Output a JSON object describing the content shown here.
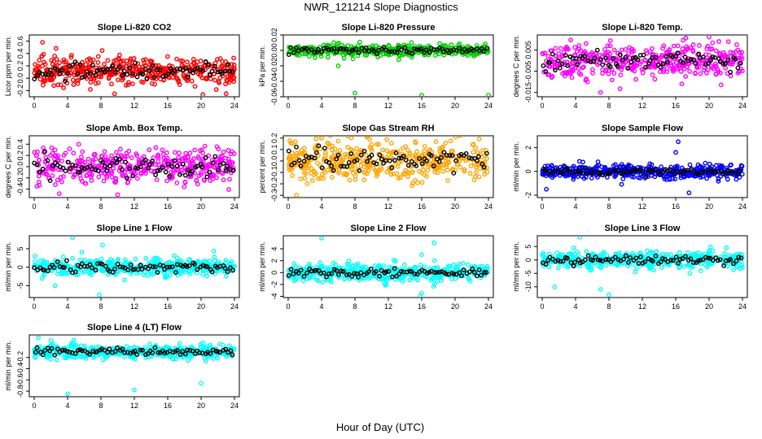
{
  "figure": {
    "title": "NWR_121214  Slope Diagnostics",
    "xlabel": "Hour of Day (UTC)"
  },
  "chart_data": [
    {
      "type": "scatter",
      "title": "Slope Li-820 CO2",
      "ylabel": "Licor ppm per min.",
      "xlim": [
        0,
        24
      ],
      "ylim": [
        -0.3,
        0.7
      ],
      "xticks": [
        0,
        4,
        8,
        12,
        16,
        20,
        24
      ],
      "yticks": [
        "-0.2",
        "0.0",
        "0.2",
        "0.4",
        "0.6"
      ],
      "ytick_values": [
        -0.2,
        0,
        0.2,
        0.4,
        0.6
      ],
      "color": "#ff0000",
      "center": 0.12,
      "spread": 0.11,
      "outliers": [
        [
          23,
          -0.25
        ],
        [
          1,
          0.58
        ]
      ],
      "series": [
        {
          "color": "#ff0000",
          "role": "all slopes"
        },
        {
          "color": "#000000",
          "role": "subset slopes"
        }
      ]
    },
    {
      "type": "scatter",
      "title": "Slope Li-820 Pressure",
      "ylabel": "kPa per min.",
      "xlim": [
        0,
        24
      ],
      "ylim": [
        -0.06,
        0.02
      ],
      "xticks": [
        0,
        4,
        8,
        12,
        16,
        20,
        24
      ],
      "yticks": [
        "-0.06",
        "-0.04",
        "-0.02",
        "0.00",
        "0.02"
      ],
      "ytick_values": [
        -0.06,
        -0.04,
        -0.02,
        0,
        0.02
      ],
      "color": "#00d000",
      "center": 0.0,
      "spread": 0.004,
      "outliers": [
        [
          8,
          -0.055
        ],
        [
          16,
          -0.058
        ],
        [
          24,
          -0.058
        ],
        [
          6,
          -0.02
        ]
      ],
      "series": [
        {
          "color": "#00d000",
          "role": "all slopes"
        },
        {
          "color": "#000000",
          "role": "subset slopes"
        }
      ]
    },
    {
      "type": "scatter",
      "title": "Slope Li-820 Temp.",
      "ylabel": "degrees C per min.",
      "xlim": [
        0,
        24
      ],
      "ylim": [
        -0.017,
        0.012
      ],
      "xticks": [
        0,
        4,
        8,
        12,
        16,
        20,
        24
      ],
      "yticks": [
        "-0.015",
        "-0.005",
        "0.005"
      ],
      "ytick_values": [
        -0.015,
        -0.005,
        0.005
      ],
      "color": "#ff00ff",
      "center": 0.0,
      "spread": 0.004,
      "outliers": [
        [
          20,
          0.011
        ],
        [
          7,
          -0.015
        ]
      ],
      "series": [
        {
          "color": "#ff00ff",
          "role": "all slopes"
        },
        {
          "color": "#000000",
          "role": "subset slopes"
        }
      ]
    },
    {
      "type": "scatter",
      "title": "Slope Amb. Box Temp.",
      "ylabel": "degrees C per min.",
      "xlim": [
        0,
        24
      ],
      "ylim": [
        -0.55,
        0.55
      ],
      "xticks": [
        0,
        4,
        8,
        12,
        16,
        20,
        24
      ],
      "yticks": [
        "-0.4",
        "-0.2",
        "0.0",
        "0.2",
        "0.4"
      ],
      "ytick_values": [
        -0.4,
        -0.2,
        0,
        0.2,
        0.4
      ],
      "color": "#ff00ff",
      "center": 0.0,
      "spread": 0.15,
      "outliers": [
        [
          10,
          -0.5
        ],
        [
          3,
          -0.48
        ]
      ],
      "series": [
        {
          "color": "#ff00ff",
          "role": "all slopes"
        },
        {
          "color": "#000000",
          "role": "subset slopes"
        }
      ]
    },
    {
      "type": "scatter",
      "title": "Slope Gas Stream RH",
      "ylabel": "percent per min.",
      "xlim": [
        0,
        24
      ],
      "ylim": [
        -0.32,
        0.22
      ],
      "xticks": [
        0,
        4,
        8,
        12,
        16,
        20,
        24
      ],
      "yticks": [
        "-0.3",
        "-0.2",
        "-0.1",
        "0.0",
        "0.1",
        "0.2"
      ],
      "ytick_values": [
        -0.3,
        -0.2,
        -0.1,
        0,
        0.1,
        0.2
      ],
      "color": "#ffa500",
      "center": 0.0,
      "spread": 0.09,
      "outliers": [
        [
          1,
          -0.3
        ],
        [
          4,
          0.2
        ]
      ],
      "series": [
        {
          "color": "#ffa500",
          "role": "all slopes"
        },
        {
          "color": "#000000",
          "role": "subset slopes"
        }
      ]
    },
    {
      "type": "scatter",
      "title": "Slope Sample Flow",
      "ylabel": "ml/min per min.",
      "xlim": [
        0,
        24
      ],
      "ylim": [
        -2.2,
        3.0
      ],
      "xticks": [
        0,
        4,
        8,
        12,
        16,
        20,
        24
      ],
      "yticks": [
        "-2",
        "0",
        "2"
      ],
      "ytick_values": [
        -2,
        0,
        2
      ],
      "color": "#0000ff",
      "center": 0.0,
      "spread": 0.3,
      "outliers": [
        [
          16.3,
          2.5
        ],
        [
          17.6,
          -1.8
        ],
        [
          0.5,
          -1.5
        ],
        [
          16,
          1.6
        ]
      ],
      "series": [
        {
          "color": "#0000ff",
          "role": "all slopes"
        },
        {
          "color": "#000000",
          "role": "subset slopes"
        }
      ]
    },
    {
      "type": "scatter",
      "title": "Slope Line 1 Flow",
      "ylabel": "ml/min per min.",
      "xlim": [
        0,
        24
      ],
      "ylim": [
        -8.2,
        8.5
      ],
      "xticks": [
        0,
        4,
        8,
        12,
        16,
        20,
        24
      ],
      "yticks": [
        "-5",
        "0",
        "5"
      ],
      "ytick_values": [
        -5,
        0,
        5
      ],
      "color": "#00ffff",
      "center": 0.0,
      "spread": 1.1,
      "outliers": [
        [
          4.6,
          8
        ],
        [
          8.2,
          6
        ],
        [
          7.8,
          -7.5
        ],
        [
          2.5,
          -5
        ]
      ],
      "series": [
        {
          "color": "#00ffff",
          "role": "all slopes"
        },
        {
          "color": "#000000",
          "role": "subset slopes"
        }
      ]
    },
    {
      "type": "scatter",
      "title": "Slope Line 2 Flow",
      "ylabel": "ml/min per min.",
      "xlim": [
        0,
        24
      ],
      "ylim": [
        -4.2,
        6.2
      ],
      "xticks": [
        0,
        4,
        8,
        12,
        16,
        20,
        24
      ],
      "yticks": [
        "-4",
        "-2",
        "0",
        "2",
        "4"
      ],
      "ytick_values": [
        -4,
        -2,
        0,
        2,
        4
      ],
      "color": "#00ffff",
      "center": 0.0,
      "spread": 0.7,
      "outliers": [
        [
          4,
          5.8
        ],
        [
          16,
          3
        ],
        [
          16,
          -3.5
        ],
        [
          17.5,
          5
        ],
        [
          15.8,
          -4
        ]
      ],
      "series": [
        {
          "color": "#00ffff",
          "role": "all slopes"
        },
        {
          "color": "#000000",
          "role": "subset slopes"
        }
      ]
    },
    {
      "type": "scatter",
      "title": "Slope Line 3 Flow",
      "ylabel": "ml/min per min.",
      "xlim": [
        0,
        24
      ],
      "ylim": [
        -14,
        9
      ],
      "xticks": [
        0,
        4,
        8,
        12,
        16,
        20,
        24
      ],
      "yticks": [
        "-10",
        "-5",
        "0",
        "5"
      ],
      "ytick_values": [
        -10,
        -5,
        0,
        5
      ],
      "color": "#00ffff",
      "center": 0.0,
      "spread": 1.6,
      "outliers": [
        [
          4.5,
          8.5
        ],
        [
          1.5,
          -10
        ],
        [
          7,
          -11
        ],
        [
          8,
          -13
        ]
      ],
      "series": [
        {
          "color": "#00ffff",
          "role": "all slopes"
        },
        {
          "color": "#000000",
          "role": "subset slopes"
        }
      ]
    },
    {
      "type": "scatter",
      "title": "Slope Line 4 (LT) Flow",
      "ylabel": "ml/min per min.",
      "xlim": [
        0,
        24
      ],
      "ylim": [
        -0.9,
        0.2
      ],
      "xticks": [
        0,
        4,
        8,
        12,
        16,
        20,
        24
      ],
      "yticks": [
        "-0.8",
        "-0.6",
        "-0.4",
        "-0.2"
      ],
      "ytick_values": [
        -0.8,
        -0.6,
        -0.4,
        -0.2
      ],
      "color": "#00ffff",
      "center": -0.1,
      "spread": 0.06,
      "outliers": [
        [
          4,
          -0.85
        ],
        [
          12,
          -0.78
        ],
        [
          20,
          -0.66
        ],
        [
          0.5,
          0.15
        ],
        [
          2,
          0.1
        ]
      ],
      "series": [
        {
          "color": "#00ffff",
          "role": "all slopes"
        },
        {
          "color": "#000000",
          "role": "subset slopes"
        }
      ]
    }
  ]
}
